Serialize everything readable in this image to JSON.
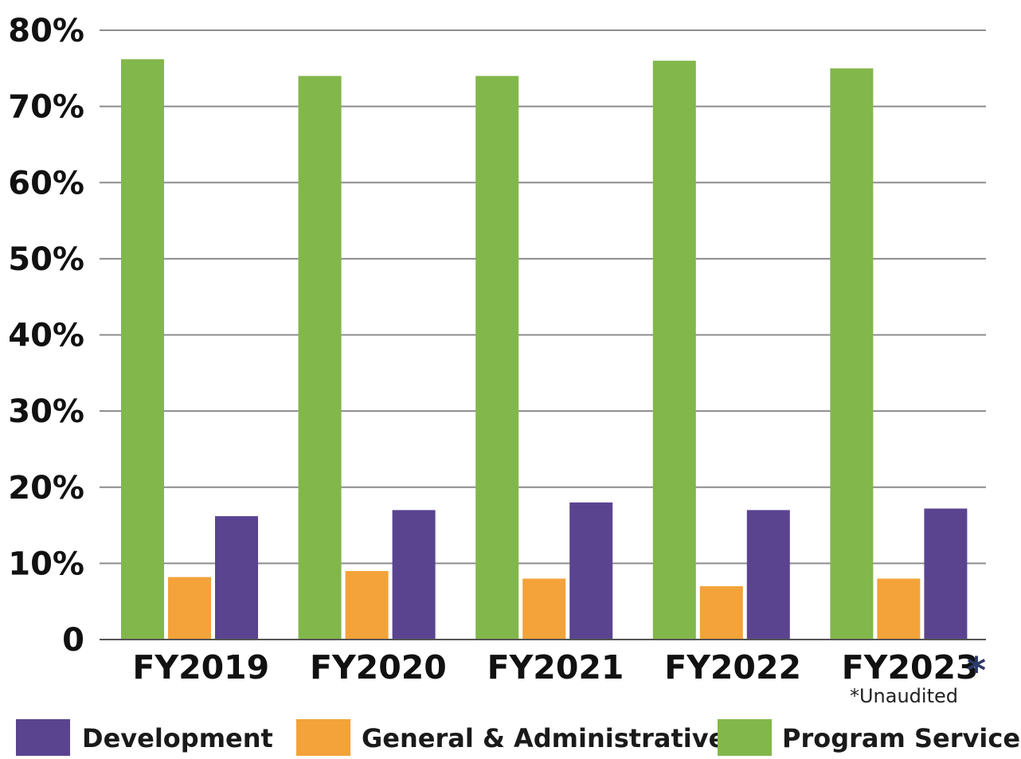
{
  "chart_data": {
    "type": "bar",
    "categories": [
      "FY2019",
      "FY2020",
      "FY2021",
      "FY2022",
      "FY2023"
    ],
    "series": [
      {
        "name": "Program Services",
        "color": "#82b74b",
        "values": [
          76.2,
          74.0,
          74.0,
          76.0,
          75.0
        ]
      },
      {
        "name": "General & Administrative",
        "color": "#f4a23a",
        "values": [
          8.2,
          9.0,
          8.0,
          7.0,
          8.0
        ]
      },
      {
        "name": "Development",
        "color": "#5a4490",
        "values": [
          16.2,
          17.0,
          18.0,
          17.0,
          17.2
        ]
      }
    ],
    "ylim": [
      0,
      80
    ],
    "yticks": [
      {
        "value": 0,
        "label": "0"
      },
      {
        "value": 10,
        "label": "10%"
      },
      {
        "value": 20,
        "label": "20%"
      },
      {
        "value": 30,
        "label": "30%"
      },
      {
        "value": 40,
        "label": "40%"
      },
      {
        "value": 50,
        "label": "50%"
      },
      {
        "value": 60,
        "label": "60%"
      },
      {
        "value": 70,
        "label": "70%"
      },
      {
        "value": 80,
        "label": "80%"
      }
    ],
    "grid": true,
    "legend": {
      "placement": "bottom",
      "order": [
        "Development",
        "General & Administrative",
        "Program Services"
      ]
    },
    "annotations": {
      "marked_category": "FY2023",
      "marker": "*",
      "marker_color": "#2b3a67",
      "footnote": "*Unaudited"
    },
    "title": "",
    "xlabel": "",
    "ylabel": ""
  }
}
